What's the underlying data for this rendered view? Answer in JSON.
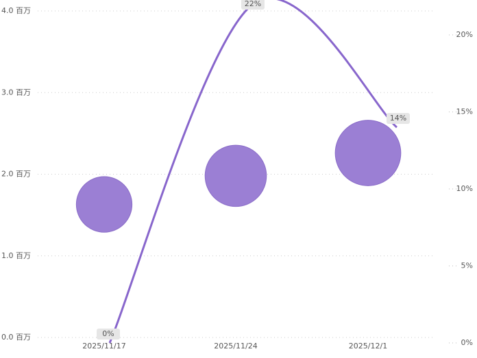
{
  "chart_data": {
    "type": "bubble-line",
    "categories": [
      "2025/11/17",
      "2025/11/24",
      "2025/12/1"
    ],
    "series": [
      {
        "type": "bubble",
        "color": "#9b7fd4",
        "values": [
          1.63,
          1.98,
          2.26
        ]
      },
      {
        "type": "line",
        "axis": "y2",
        "color": "#8866cc",
        "values": [
          0,
          22,
          14
        ],
        "value_labels": [
          "0%",
          "22%",
          "14%"
        ]
      }
    ],
    "ylim": [
      0,
      4
    ],
    "yticks": [
      {
        "value": 0,
        "label": "0.0 百万"
      },
      {
        "value": 1,
        "label": "1.0 百万"
      },
      {
        "value": 2,
        "label": "2.0 百万"
      },
      {
        "value": 3,
        "label": "3.0 百万"
      },
      {
        "value": 4,
        "label": "4.0 百万"
      }
    ],
    "y2lim": [
      0,
      22
    ],
    "y2ticks": [
      {
        "value": 0,
        "label": "0%"
      },
      {
        "value": 5,
        "label": "5%"
      },
      {
        "value": 10,
        "label": "10%"
      },
      {
        "value": 15,
        "label": "15%"
      },
      {
        "value": 20,
        "label": "20%"
      }
    ],
    "grid": true
  }
}
